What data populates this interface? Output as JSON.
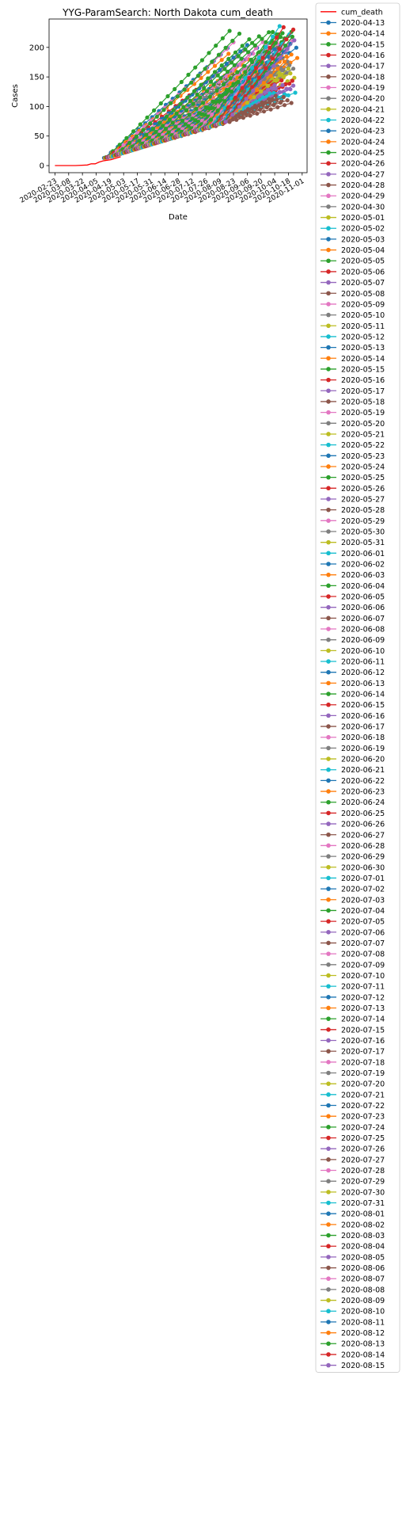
{
  "chart_data": {
    "type": "line",
    "title": "YYG-ParamSearch: North Dakota cum_death",
    "xlabel": "Date",
    "ylabel": "Cases",
    "ylim": [
      -12,
      248
    ],
    "yticks": [
      0,
      50,
      100,
      150,
      200
    ],
    "xlim": [
      "2020-02-17",
      "2020-11-06"
    ],
    "xticks": [
      "2020-02-23",
      "2020-03-08",
      "2020-03-22",
      "2020-04-05",
      "2020-04-19",
      "2020-05-03",
      "2020-05-17",
      "2020-05-31",
      "2020-06-14",
      "2020-06-28",
      "2020-07-12",
      "2020-07-26",
      "2020-08-09",
      "2020-08-23",
      "2020-09-06",
      "2020-09-20",
      "2020-10-04",
      "2020-10-18",
      "2020-11-01"
    ],
    "xtick_labels": [
      "2020-02-23",
      "2020-03-08",
      "2020-03-22",
      "2020-04-05",
      "2020-04-19",
      "2020-05-03",
      "2020-05-17",
      "2020-05-31",
      "2020-06-14",
      "2020-06-28",
      "2020-07-12",
      "2020-07-26",
      "2020-08-09",
      "2020-08-23",
      "2020-09-06",
      "2020-09-20",
      "2020-10-04",
      "2020-10-18",
      "2020-11-01"
    ],
    "grid": false,
    "legend_position": "outside right",
    "actual": {
      "name": "cum_death",
      "color": "#ff0000",
      "x": [
        "2020-02-23",
        "2020-03-15",
        "2020-03-27",
        "2020-03-31",
        "2020-04-04",
        "2020-04-08",
        "2020-04-12",
        "2020-04-16",
        "2020-04-20",
        "2020-04-24",
        "2020-04-30"
      ],
      "y": [
        0,
        0,
        1,
        3,
        3,
        6,
        8,
        9,
        10,
        12,
        15
      ]
    },
    "forecast_colors": [
      "#1f77b4",
      "#ff7f0e",
      "#2ca02c",
      "#d62728",
      "#9467bd",
      "#8c564b",
      "#e377c2",
      "#7f7f7f",
      "#bcbd22",
      "#17becf"
    ],
    "forecast_series": [
      {
        "name": "2020-04-13",
        "start": 13,
        "end": 205,
        "days": 130
      },
      {
        "name": "2020-04-14",
        "start": 13,
        "end": 195,
        "days": 130
      },
      {
        "name": "2020-04-15",
        "start": 14,
        "end": 235,
        "days": 130
      },
      {
        "name": "2020-04-16",
        "start": 14,
        "end": 180,
        "days": 130
      },
      {
        "name": "2020-04-17",
        "start": 14,
        "end": 125,
        "days": 130
      },
      {
        "name": "2020-04-18",
        "start": 15,
        "end": 160,
        "days": 130
      },
      {
        "name": "2020-04-19",
        "start": 15,
        "end": 215,
        "days": 130
      },
      {
        "name": "2020-04-20",
        "start": 15,
        "end": 150,
        "days": 130
      },
      {
        "name": "2020-04-21",
        "start": 16,
        "end": 165,
        "days": 130
      },
      {
        "name": "2020-04-22",
        "start": 16,
        "end": 120,
        "days": 130
      },
      {
        "name": "2020-04-23",
        "start": 17,
        "end": 190,
        "days": 130
      },
      {
        "name": "2020-04-24",
        "start": 17,
        "end": 175,
        "days": 130
      },
      {
        "name": "2020-04-25",
        "start": 18,
        "end": 230,
        "days": 130
      },
      {
        "name": "2020-04-26",
        "start": 18,
        "end": 140,
        "days": 130
      },
      {
        "name": "2020-04-27",
        "start": 19,
        "end": 130,
        "days": 130
      },
      {
        "name": "2020-04-28",
        "start": 19,
        "end": 110,
        "days": 130
      },
      {
        "name": "2020-04-29",
        "start": 20,
        "end": 200,
        "days": 130
      },
      {
        "name": "2020-04-30",
        "start": 20,
        "end": 170,
        "days": 130
      },
      {
        "name": "2020-05-01",
        "start": 21,
        "end": 155,
        "days": 130
      },
      {
        "name": "2020-05-02",
        "start": 21,
        "end": 145,
        "days": 130
      },
      {
        "name": "2020-05-03",
        "start": 22,
        "end": 210,
        "days": 130
      },
      {
        "name": "2020-05-04",
        "start": 22,
        "end": 185,
        "days": 130
      },
      {
        "name": "2020-05-05",
        "start": 23,
        "end": 220,
        "days": 130
      },
      {
        "name": "2020-05-06",
        "start": 23,
        "end": 135,
        "days": 130
      },
      {
        "name": "2020-05-07",
        "start": 24,
        "end": 125,
        "days": 130
      },
      {
        "name": "2020-05-08",
        "start": 24,
        "end": 115,
        "days": 130
      },
      {
        "name": "2020-05-09",
        "start": 25,
        "end": 195,
        "days": 130
      },
      {
        "name": "2020-05-10",
        "start": 25,
        "end": 160,
        "days": 130
      },
      {
        "name": "2020-05-11",
        "start": 26,
        "end": 150,
        "days": 130
      },
      {
        "name": "2020-05-12",
        "start": 26,
        "end": 130,
        "days": 130
      },
      {
        "name": "2020-05-13",
        "start": 27,
        "end": 205,
        "days": 130
      },
      {
        "name": "2020-05-14",
        "start": 27,
        "end": 180,
        "days": 130
      },
      {
        "name": "2020-05-15",
        "start": 28,
        "end": 225,
        "days": 130
      },
      {
        "name": "2020-05-16",
        "start": 28,
        "end": 140,
        "days": 130
      },
      {
        "name": "2020-05-17",
        "start": 29,
        "end": 120,
        "days": 130
      },
      {
        "name": "2020-05-18",
        "start": 29,
        "end": 110,
        "days": 130
      },
      {
        "name": "2020-05-19",
        "start": 30,
        "end": 215,
        "days": 130
      },
      {
        "name": "2020-05-20",
        "start": 30,
        "end": 165,
        "days": 130
      },
      {
        "name": "2020-05-21",
        "start": 31,
        "end": 155,
        "days": 130
      },
      {
        "name": "2020-05-22",
        "start": 31,
        "end": 128,
        "days": 130
      },
      {
        "name": "2020-05-23",
        "start": 32,
        "end": 200,
        "days": 130
      },
      {
        "name": "2020-05-24",
        "start": 32,
        "end": 190,
        "days": 130
      },
      {
        "name": "2020-05-25",
        "start": 33,
        "end": 232,
        "days": 130
      },
      {
        "name": "2020-05-26",
        "start": 33,
        "end": 145,
        "days": 130
      },
      {
        "name": "2020-05-27",
        "start": 34,
        "end": 135,
        "days": 130
      },
      {
        "name": "2020-05-28",
        "start": 34,
        "end": 118,
        "days": 130
      },
      {
        "name": "2020-05-29",
        "start": 35,
        "end": 210,
        "days": 130
      },
      {
        "name": "2020-05-30",
        "start": 35,
        "end": 170,
        "days": 130
      },
      {
        "name": "2020-05-31",
        "start": 36,
        "end": 160,
        "days": 130
      },
      {
        "name": "2020-06-01",
        "start": 36,
        "end": 125,
        "days": 130
      },
      {
        "name": "2020-06-02",
        "start": 37,
        "end": 195,
        "days": 130
      },
      {
        "name": "2020-06-03",
        "start": 37,
        "end": 185,
        "days": 130
      },
      {
        "name": "2020-06-04",
        "start": 38,
        "end": 228,
        "days": 130
      },
      {
        "name": "2020-06-05",
        "start": 38,
        "end": 150,
        "days": 130
      },
      {
        "name": "2020-06-06",
        "start": 39,
        "end": 138,
        "days": 130
      },
      {
        "name": "2020-06-07",
        "start": 39,
        "end": 112,
        "days": 130
      },
      {
        "name": "2020-06-08",
        "start": 40,
        "end": 212,
        "days": 130
      },
      {
        "name": "2020-06-09",
        "start": 40,
        "end": 165,
        "days": 130
      },
      {
        "name": "2020-06-10",
        "start": 41,
        "end": 158,
        "days": 130
      },
      {
        "name": "2020-06-11",
        "start": 41,
        "end": 122,
        "days": 130
      },
      {
        "name": "2020-06-12",
        "start": 42,
        "end": 205,
        "days": 130
      },
      {
        "name": "2020-06-13",
        "start": 42,
        "end": 178,
        "days": 130
      },
      {
        "name": "2020-06-14",
        "start": 43,
        "end": 225,
        "days": 130
      },
      {
        "name": "2020-06-15",
        "start": 43,
        "end": 142,
        "days": 130
      },
      {
        "name": "2020-06-16",
        "start": 44,
        "end": 132,
        "days": 130
      },
      {
        "name": "2020-06-17",
        "start": 44,
        "end": 108,
        "days": 130
      },
      {
        "name": "2020-06-18",
        "start": 45,
        "end": 218,
        "days": 130
      },
      {
        "name": "2020-06-19",
        "start": 45,
        "end": 168,
        "days": 130
      },
      {
        "name": "2020-06-20",
        "start": 46,
        "end": 152,
        "days": 130
      },
      {
        "name": "2020-06-21",
        "start": 46,
        "end": 126,
        "days": 130
      },
      {
        "name": "2020-06-22",
        "start": 47,
        "end": 202,
        "days": 128
      },
      {
        "name": "2020-06-23",
        "start": 47,
        "end": 182,
        "days": 126
      },
      {
        "name": "2020-06-24",
        "start": 48,
        "end": 234,
        "days": 124
      },
      {
        "name": "2020-06-25",
        "start": 48,
        "end": 146,
        "days": 122
      },
      {
        "name": "2020-06-26",
        "start": 49,
        "end": 136,
        "days": 120
      },
      {
        "name": "2020-06-27",
        "start": 49,
        "end": 114,
        "days": 118
      },
      {
        "name": "2020-06-28",
        "start": 50,
        "end": 208,
        "days": 116
      },
      {
        "name": "2020-06-29",
        "start": 50,
        "end": 172,
        "days": 114
      },
      {
        "name": "2020-06-30",
        "start": 51,
        "end": 156,
        "days": 112
      },
      {
        "name": "2020-07-01",
        "start": 51,
        "end": 124,
        "days": 110
      },
      {
        "name": "2020-07-02",
        "start": 52,
        "end": 196,
        "days": 108
      },
      {
        "name": "2020-07-03",
        "start": 52,
        "end": 186,
        "days": 106
      },
      {
        "name": "2020-07-04",
        "start": 53,
        "end": 228,
        "days": 104
      },
      {
        "name": "2020-07-05",
        "start": 53,
        "end": 148,
        "days": 102
      },
      {
        "name": "2020-07-06",
        "start": 54,
        "end": 138,
        "days": 100
      },
      {
        "name": "2020-07-07",
        "start": 54,
        "end": 116,
        "days": 98
      },
      {
        "name": "2020-07-08",
        "start": 55,
        "end": 214,
        "days": 96
      },
      {
        "name": "2020-07-09",
        "start": 55,
        "end": 166,
        "days": 94
      },
      {
        "name": "2020-07-10",
        "start": 56,
        "end": 154,
        "days": 92
      },
      {
        "name": "2020-07-11",
        "start": 56,
        "end": 128,
        "days": 90
      },
      {
        "name": "2020-07-12",
        "start": 57,
        "end": 204,
        "days": 88
      },
      {
        "name": "2020-07-13",
        "start": 57,
        "end": 176,
        "days": 86
      },
      {
        "name": "2020-07-14",
        "start": 58,
        "end": 222,
        "days": 84
      },
      {
        "name": "2020-07-15",
        "start": 58,
        "end": 144,
        "days": 82
      },
      {
        "name": "2020-07-16",
        "start": 59,
        "end": 134,
        "days": 80
      },
      {
        "name": "2020-07-17",
        "start": 59,
        "end": 112,
        "days": 78
      },
      {
        "name": "2020-07-18",
        "start": 60,
        "end": 216,
        "days": 76
      },
      {
        "name": "2020-07-19",
        "start": 60,
        "end": 162,
        "days": 74
      },
      {
        "name": "2020-07-20",
        "start": 61,
        "end": 150,
        "days": 72
      },
      {
        "name": "2020-07-21",
        "start": 61,
        "end": 122,
        "days": 70
      },
      {
        "name": "2020-07-22",
        "start": 62,
        "end": 198,
        "days": 70
      },
      {
        "name": "2020-07-23",
        "start": 62,
        "end": 184,
        "days": 70
      },
      {
        "name": "2020-07-24",
        "start": 63,
        "end": 226,
        "days": 70
      },
      {
        "name": "2020-07-25",
        "start": 63,
        "end": 146,
        "days": 70
      },
      {
        "name": "2020-07-26",
        "start": 64,
        "end": 136,
        "days": 70
      },
      {
        "name": "2020-07-27",
        "start": 64,
        "end": 118,
        "days": 70
      },
      {
        "name": "2020-07-28",
        "start": 65,
        "end": 210,
        "days": 70
      },
      {
        "name": "2020-07-29",
        "start": 65,
        "end": 168,
        "days": 70
      },
      {
        "name": "2020-07-30",
        "start": 66,
        "end": 158,
        "days": 70
      },
      {
        "name": "2020-07-31",
        "start": 66,
        "end": 236,
        "days": 70
      },
      {
        "name": "2020-08-01",
        "start": 67,
        "end": 202,
        "days": 70
      },
      {
        "name": "2020-08-02",
        "start": 67,
        "end": 186,
        "days": 70
      },
      {
        "name": "2020-08-03",
        "start": 68,
        "end": 224,
        "days": 70
      },
      {
        "name": "2020-08-04",
        "start": 68,
        "end": 234,
        "days": 70
      },
      {
        "name": "2020-08-05",
        "start": 69,
        "end": 192,
        "days": 70
      },
      {
        "name": "2020-08-06",
        "start": 69,
        "end": 214,
        "days": 70
      },
      {
        "name": "2020-08-07",
        "start": 70,
        "end": 196,
        "days": 70
      },
      {
        "name": "2020-08-08",
        "start": 70,
        "end": 176,
        "days": 70
      },
      {
        "name": "2020-08-09",
        "start": 71,
        "end": 164,
        "days": 70
      },
      {
        "name": "2020-08-10",
        "start": 71,
        "end": 222,
        "days": 70
      },
      {
        "name": "2020-08-11",
        "start": 72,
        "end": 206,
        "days": 70
      },
      {
        "name": "2020-08-12",
        "start": 72,
        "end": 188,
        "days": 70
      },
      {
        "name": "2020-08-13",
        "start": 73,
        "end": 218,
        "days": 70
      },
      {
        "name": "2020-08-14",
        "start": 73,
        "end": 230,
        "days": 70
      },
      {
        "name": "2020-08-15",
        "start": 74,
        "end": 212,
        "days": 70
      }
    ]
  }
}
